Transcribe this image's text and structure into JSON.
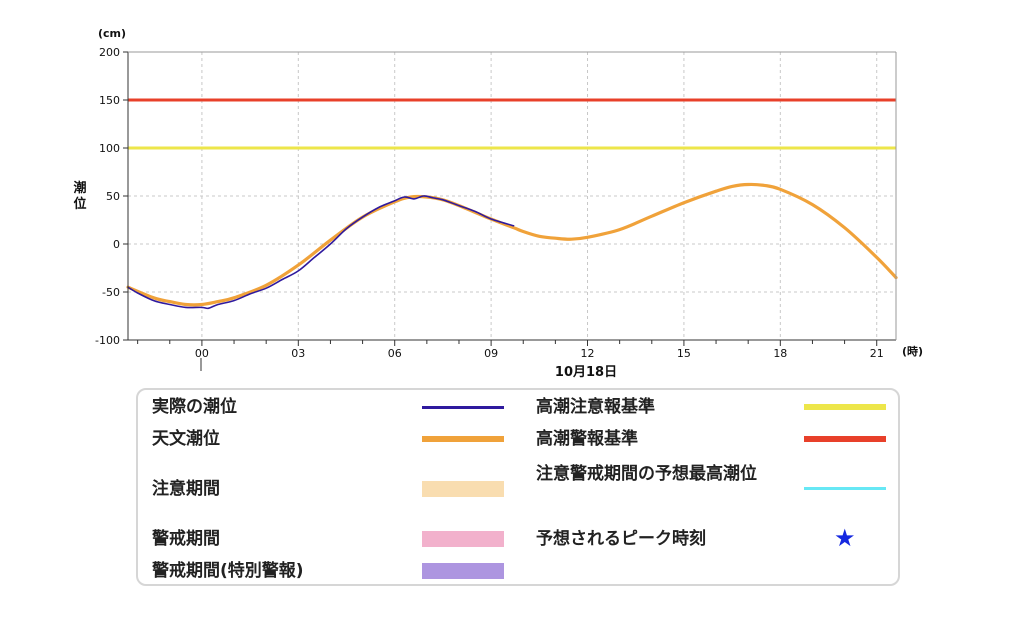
{
  "chart_data": {
    "type": "line",
    "y_unit": "(cm)",
    "ylabel": "潮位",
    "x_unit": "(時)",
    "date_label": "10月18日",
    "ylim": [
      -100,
      200
    ],
    "yticks": [
      -100,
      -50,
      0,
      50,
      100,
      150,
      200
    ],
    "xlim": [
      -2.3,
      21.6
    ],
    "xticks": [
      0,
      3,
      6,
      9,
      12,
      15,
      18,
      21
    ],
    "xtick_labels": [
      "00",
      "03",
      "06",
      "09",
      "12",
      "15",
      "18",
      "21"
    ],
    "grid": true,
    "reference_lines": [
      {
        "name": "高潮警報基準",
        "value": 150,
        "color": "#e8402a"
      },
      {
        "name": "高潮注意報基準",
        "value": 100,
        "color": "#ede64a"
      }
    ],
    "series": [
      {
        "name": "天文潮位",
        "color": "#f0a23a",
        "x": [
          -2.3,
          -1.5,
          -1,
          -0.5,
          0,
          0.5,
          1,
          2,
          3,
          4,
          5,
          6,
          6.5,
          7,
          7.5,
          8,
          9,
          9.7,
          10,
          10.5,
          11,
          11.5,
          12,
          13,
          14,
          15,
          16,
          16.5,
          17,
          17.5,
          18,
          19,
          20,
          21,
          21.6
        ],
        "y": [
          -45,
          -56,
          -60,
          -63,
          -63,
          -60,
          -56,
          -43,
          -22,
          4,
          28,
          44,
          49,
          49,
          46,
          40,
          26,
          17,
          13,
          8,
          6,
          5,
          7,
          15,
          29,
          43,
          55,
          60,
          62,
          61,
          57,
          41,
          17,
          -14,
          -35
        ]
      },
      {
        "name": "実際の潮位",
        "color": "#2f1a9e",
        "x": [
          -2.3,
          -2,
          -1.5,
          -1,
          -0.5,
          0,
          0.2,
          0.5,
          1,
          1.5,
          2,
          2.5,
          3,
          3.5,
          4,
          4.5,
          5,
          5.5,
          6,
          6.3,
          6.6,
          6.9,
          7.2,
          7.5,
          8,
          8.5,
          9,
          9.7
        ],
        "y": [
          -45,
          -51,
          -59,
          -63,
          -66,
          -66,
          -67,
          -63,
          -59,
          -52,
          -46,
          -37,
          -28,
          -14,
          0,
          16,
          28,
          38,
          45,
          49,
          47,
          50,
          48,
          46,
          40,
          34,
          26,
          19
        ]
      }
    ]
  },
  "legend": [
    {
      "label": "実際の潮位",
      "color": "#2f1a9e",
      "style": "line"
    },
    {
      "label": "高潮注意報基準",
      "color": "#ede64a",
      "style": "thick"
    },
    {
      "label": "天文潮位",
      "color": "#f0a23a",
      "style": "thick"
    },
    {
      "label": "高潮警報基準",
      "color": "#e8402a",
      "style": "thick"
    },
    {
      "label": "注意期間",
      "color": "#f9ddb0",
      "style": "band"
    },
    {
      "label": "注意警戒期間の予想最高潮位",
      "color": "#67e8f5",
      "style": "line"
    },
    {
      "label": "警戒期間",
      "color": "#f2b1cc",
      "style": "band"
    },
    {
      "label": "予想されるピーク時刻",
      "color": "#1528e0",
      "style": "star",
      "symbol": "★"
    },
    {
      "label": "警戒期間(特別警報)",
      "color": "#ad95e0",
      "style": "band"
    }
  ]
}
